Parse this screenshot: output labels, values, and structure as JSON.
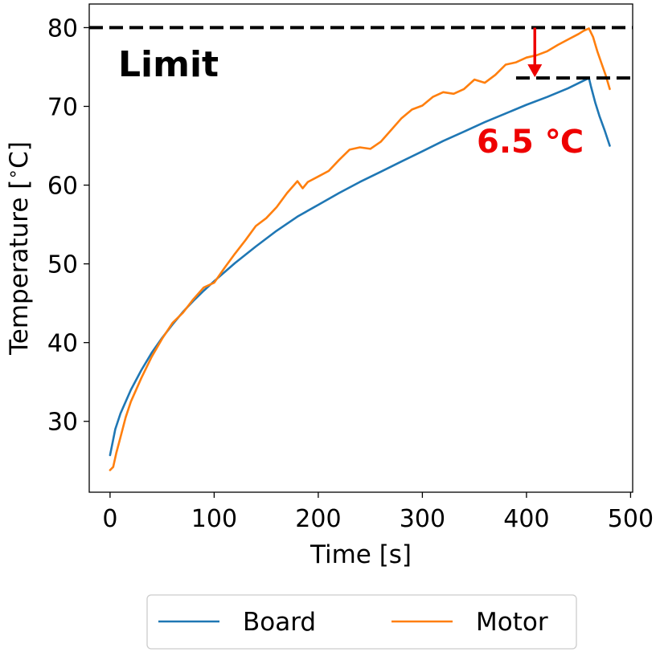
{
  "chart_data": {
    "type": "line",
    "xlabel": "Time [s]",
    "ylabel": "Temperature [$^\\circ$C]",
    "xlim": [
      -20,
      502
    ],
    "ylim": [
      21,
      83
    ],
    "xticks": [
      0,
      100,
      200,
      300,
      400,
      500
    ],
    "yticks": [
      30,
      40,
      50,
      60,
      70,
      80
    ],
    "grid": false,
    "legend_position": "bottom-center",
    "series": [
      {
        "name": "Board",
        "color": "#1f77b4",
        "x": [
          0,
          5,
          10,
          20,
          30,
          40,
          50,
          60,
          70,
          80,
          90,
          100,
          120,
          140,
          160,
          180,
          200,
          220,
          240,
          260,
          280,
          300,
          320,
          340,
          360,
          380,
          400,
          420,
          440,
          460,
          462,
          466,
          470,
          475,
          480
        ],
        "y": [
          25.7,
          29.0,
          31.0,
          34.0,
          36.5,
          38.7,
          40.6,
          42.3,
          43.9,
          45.3,
          46.6,
          47.8,
          50.1,
          52.2,
          54.2,
          56.0,
          57.5,
          59.0,
          60.4,
          61.7,
          63.0,
          64.3,
          65.6,
          66.8,
          68.0,
          69.1,
          70.2,
          71.2,
          72.3,
          73.6,
          72.5,
          70.5,
          68.8,
          67.0,
          65.0
        ]
      },
      {
        "name": "Motor",
        "color": "#ff7f0e",
        "x": [
          0,
          3,
          6,
          10,
          15,
          20,
          30,
          40,
          50,
          60,
          70,
          80,
          90,
          100,
          110,
          120,
          130,
          140,
          150,
          160,
          170,
          180,
          185,
          190,
          200,
          210,
          220,
          230,
          240,
          250,
          260,
          270,
          280,
          290,
          300,
          310,
          320,
          330,
          340,
          350,
          360,
          370,
          380,
          390,
          400,
          410,
          420,
          430,
          440,
          450,
          455,
          460,
          464,
          468,
          472,
          476,
          480
        ],
        "y": [
          23.8,
          24.2,
          26.0,
          28.0,
          30.5,
          32.5,
          35.5,
          38.2,
          40.5,
          42.5,
          43.8,
          45.5,
          47.0,
          47.6,
          49.5,
          51.3,
          53.0,
          54.8,
          55.8,
          57.2,
          59.0,
          60.5,
          59.6,
          60.4,
          61.1,
          61.8,
          63.2,
          64.5,
          64.8,
          64.6,
          65.5,
          67.0,
          68.5,
          69.6,
          70.1,
          71.2,
          71.8,
          71.6,
          72.2,
          73.4,
          73.0,
          74.0,
          75.3,
          75.6,
          76.2,
          76.5,
          77.0,
          77.8,
          78.5,
          79.2,
          79.6,
          79.9,
          78.8,
          77.0,
          75.5,
          74.0,
          72.2
        ]
      }
    ],
    "annotations": [
      {
        "text": "Limit",
        "x": 0.1,
        "y": 77.5,
        "color": "#000000"
      },
      {
        "text": "6.5 ℃",
        "x": 353,
        "y": 68.5,
        "color": "#ee0000"
      }
    ],
    "reference_lines": [
      {
        "type": "hline",
        "y": 80,
        "xmin": -20,
        "xmax": 502,
        "style": "dashed",
        "color": "#000000"
      },
      {
        "type": "hline",
        "y": 73.6,
        "xmin": 390,
        "xmax": 502,
        "style": "dashed",
        "color": "#000000"
      }
    ],
    "arrow": {
      "x": 408,
      "y_from": 80,
      "y_to": 73.6,
      "color": "#ee0000"
    }
  }
}
